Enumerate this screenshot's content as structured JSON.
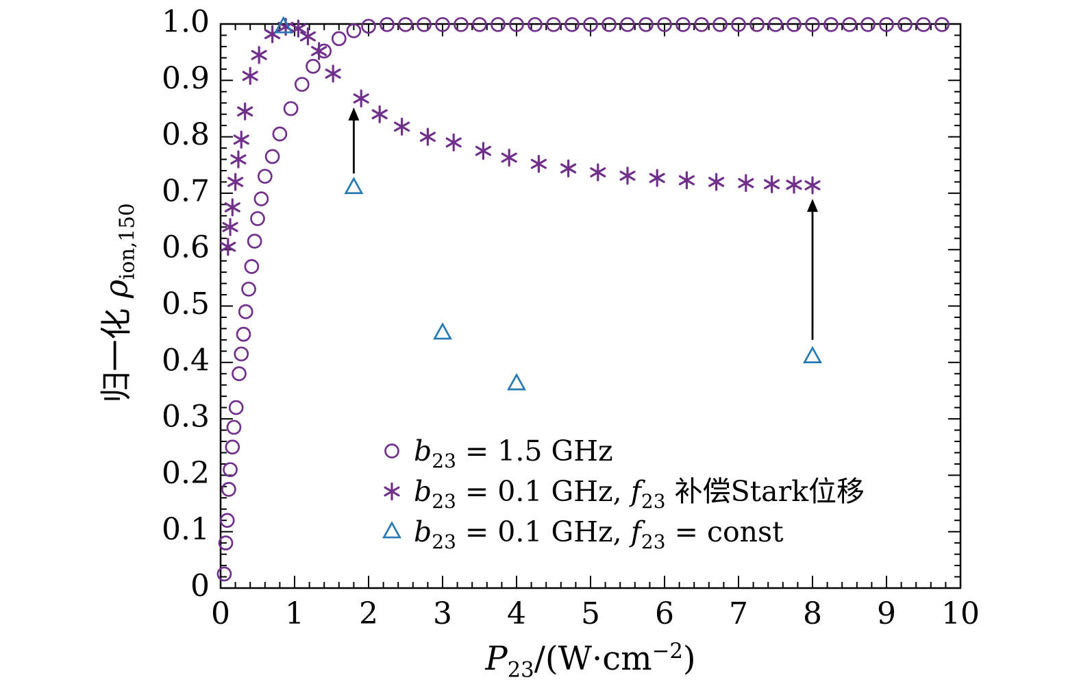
{
  "figure": {
    "background": "#ffffff"
  },
  "chart_data": {
    "type": "scatter",
    "title": "",
    "xlim": [
      0,
      10
    ],
    "ylim": [
      0,
      1.0
    ],
    "grid": false,
    "legend_position": "inside-bottom-center",
    "xlabel_parts": [
      {
        "t": "P",
        "k": "it"
      },
      {
        "t": "23",
        "k": "sub"
      },
      {
        "t": "/(W·cm",
        "k": "rm"
      },
      {
        "t": "−2",
        "k": "sup"
      },
      {
        "t": ")",
        "k": "rm"
      }
    ],
    "ylabel_parts": [
      {
        "t": "归一化 ",
        "k": "rm"
      },
      {
        "t": "ρ",
        "k": "it"
      },
      {
        "t": "ion,150",
        "k": "sub"
      }
    ],
    "x_ticks": {
      "major": [
        0,
        1,
        2,
        3,
        4,
        5,
        6,
        7,
        8,
        9,
        10
      ],
      "labels": [
        "0",
        "1",
        "2",
        "3",
        "4",
        "5",
        "6",
        "7",
        "8",
        "9",
        "10"
      ],
      "minor_step": 0.2
    },
    "y_ticks": {
      "major": [
        0,
        0.1,
        0.2,
        0.3,
        0.4,
        0.5,
        0.6,
        0.7,
        0.8,
        0.9,
        1.0
      ],
      "labels": [
        "0",
        "0.1",
        "0.2",
        "0.3",
        "0.4",
        "0.5",
        "0.6",
        "0.7",
        "0.8",
        "0.9",
        "1.0"
      ],
      "minor_step": 0.02
    },
    "colors": {
      "purple": "#702f8a",
      "blue": "#2679b2",
      "axis": "#000000",
      "arrow": "#000000"
    },
    "series": [
      {
        "name": "b23 = 1.5 GHz",
        "marker": "circle",
        "color": "#702f8a",
        "points": [
          [
            0.05,
            0.025
          ],
          [
            0.07,
            0.08
          ],
          [
            0.09,
            0.12
          ],
          [
            0.11,
            0.175
          ],
          [
            0.13,
            0.21
          ],
          [
            0.16,
            0.25
          ],
          [
            0.18,
            0.285
          ],
          [
            0.21,
            0.32
          ],
          [
            0.25,
            0.38
          ],
          [
            0.28,
            0.415
          ],
          [
            0.31,
            0.45
          ],
          [
            0.34,
            0.49
          ],
          [
            0.38,
            0.53
          ],
          [
            0.42,
            0.57
          ],
          [
            0.46,
            0.615
          ],
          [
            0.5,
            0.655
          ],
          [
            0.55,
            0.69
          ],
          [
            0.6,
            0.73
          ],
          [
            0.7,
            0.765
          ],
          [
            0.8,
            0.805
          ],
          [
            0.95,
            0.85
          ],
          [
            1.1,
            0.893
          ],
          [
            1.25,
            0.925
          ],
          [
            1.4,
            0.952
          ],
          [
            1.6,
            0.974
          ],
          [
            1.8,
            0.988
          ],
          [
            2.0,
            0.996
          ],
          [
            2.25,
            0.999
          ],
          [
            2.5,
            0.999
          ],
          [
            2.75,
            0.999
          ],
          [
            3.0,
            0.999
          ],
          [
            3.25,
            0.999
          ],
          [
            3.5,
            0.999
          ],
          [
            3.75,
            0.999
          ],
          [
            4.0,
            0.999
          ],
          [
            4.25,
            0.999
          ],
          [
            4.5,
            0.999
          ],
          [
            4.75,
            0.999
          ],
          [
            5.0,
            0.999
          ],
          [
            5.25,
            0.999
          ],
          [
            5.5,
            0.999
          ],
          [
            5.75,
            0.999
          ],
          [
            6.0,
            0.999
          ],
          [
            6.25,
            0.999
          ],
          [
            6.5,
            0.999
          ],
          [
            6.75,
            0.999
          ],
          [
            7.0,
            0.999
          ],
          [
            7.25,
            0.999
          ],
          [
            7.5,
            0.999
          ],
          [
            7.75,
            0.999
          ],
          [
            8.0,
            0.999
          ],
          [
            8.25,
            0.999
          ],
          [
            8.5,
            0.999
          ],
          [
            8.75,
            0.999
          ],
          [
            9.0,
            0.999
          ],
          [
            9.25,
            0.999
          ],
          [
            9.5,
            0.999
          ],
          [
            9.75,
            0.999
          ]
        ]
      },
      {
        "name": "b23 = 0.1 GHz, f23 补偿Stark位移",
        "marker": "asterisk",
        "color": "#702f8a",
        "points": [
          [
            0.1,
            0.605
          ],
          [
            0.13,
            0.64
          ],
          [
            0.16,
            0.675
          ],
          [
            0.2,
            0.72
          ],
          [
            0.24,
            0.76
          ],
          [
            0.28,
            0.795
          ],
          [
            0.33,
            0.845
          ],
          [
            0.4,
            0.908
          ],
          [
            0.52,
            0.945
          ],
          [
            0.7,
            0.982
          ],
          [
            0.88,
            0.995
          ],
          [
            1.05,
            0.992
          ],
          [
            1.18,
            0.978
          ],
          [
            1.33,
            0.952
          ],
          [
            1.52,
            0.912
          ],
          [
            1.9,
            0.868
          ],
          [
            2.15,
            0.84
          ],
          [
            2.45,
            0.818
          ],
          [
            2.8,
            0.8
          ],
          [
            3.15,
            0.79
          ],
          [
            3.55,
            0.775
          ],
          [
            3.9,
            0.763
          ],
          [
            4.3,
            0.752
          ],
          [
            4.7,
            0.744
          ],
          [
            5.1,
            0.737
          ],
          [
            5.5,
            0.731
          ],
          [
            5.9,
            0.727
          ],
          [
            6.3,
            0.723
          ],
          [
            6.7,
            0.72
          ],
          [
            7.1,
            0.718
          ],
          [
            7.45,
            0.716
          ],
          [
            7.75,
            0.715
          ],
          [
            8.0,
            0.714
          ]
        ]
      },
      {
        "name": "b23 = 0.1 GHz, f23 = const",
        "marker": "triangle",
        "color": "#2679b2",
        "points": [
          [
            0.85,
            0.995
          ],
          [
            1.8,
            0.71
          ],
          [
            3.0,
            0.452
          ],
          [
            4.0,
            0.362
          ],
          [
            8.0,
            0.41
          ]
        ]
      }
    ],
    "annotations": {
      "arrows": [
        {
          "x": 1.8,
          "y_from": 0.735,
          "y_to": 0.852
        },
        {
          "x": 8.0,
          "y_from": 0.44,
          "y_to": 0.69
        }
      ]
    },
    "legend": {
      "items": [
        {
          "marker": "circle",
          "color": "#702f8a",
          "label_parts": [
            {
              "t": "b",
              "k": "it"
            },
            {
              "t": "23",
              "k": "sub"
            },
            {
              "t": " = 1.5 GHz",
              "k": "rm"
            }
          ]
        },
        {
          "marker": "asterisk",
          "color": "#702f8a",
          "label_parts": [
            {
              "t": "b",
              "k": "it"
            },
            {
              "t": "23",
              "k": "sub"
            },
            {
              "t": " = 0.1 GHz, ",
              "k": "rm"
            },
            {
              "t": "f",
              "k": "it"
            },
            {
              "t": "23",
              "k": "sub"
            },
            {
              "t": " 补偿Stark位移",
              "k": "rm"
            }
          ]
        },
        {
          "marker": "triangle",
          "color": "#2679b2",
          "label_parts": [
            {
              "t": "b",
              "k": "it"
            },
            {
              "t": "23",
              "k": "sub"
            },
            {
              "t": " = 0.1 GHz, ",
              "k": "rm"
            },
            {
              "t": "f",
              "k": "it"
            },
            {
              "t": "23",
              "k": "sub"
            },
            {
              "t": " = const",
              "k": "rm"
            }
          ]
        }
      ]
    }
  }
}
